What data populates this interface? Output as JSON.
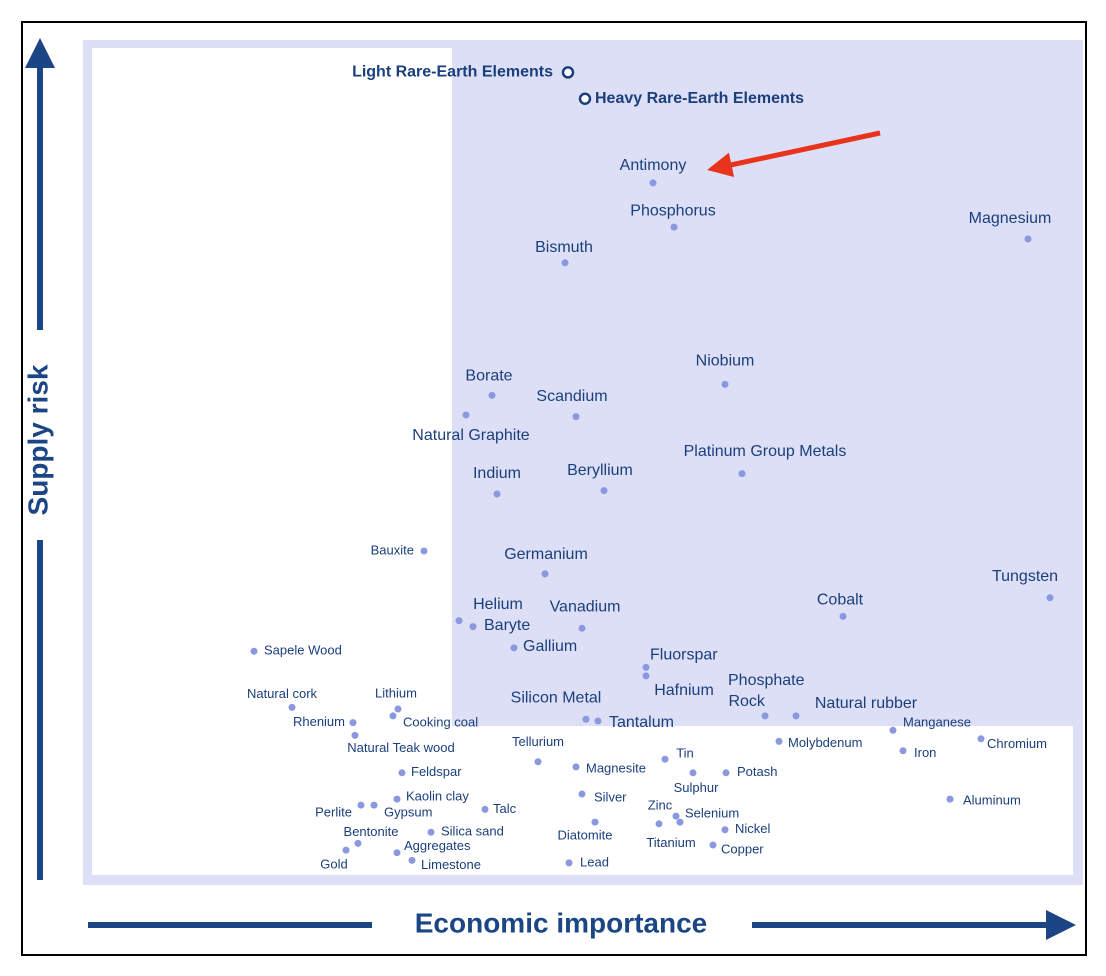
{
  "chart_data": {
    "type": "scatter",
    "x_label": "Economic importance",
    "y_label": "Supply risk",
    "xlim": [
      0,
      100
    ],
    "ylim": [
      0,
      100
    ],
    "shaded_region": {
      "xmin": 37.2,
      "ymin": 18.7
    },
    "hollow_points": [
      {
        "label": "Light Rare-Earth Elements",
        "x": 48.8,
        "y": 95.6
      },
      {
        "label": "Heavy Rare-Earth Elements",
        "x": 50.5,
        "y": 92.5
      }
    ],
    "points": [
      {
        "label": "Antimony",
        "x": 57.3,
        "y": 82.6
      },
      {
        "label": "Phosphorus",
        "x": 59.4,
        "y": 77.4
      },
      {
        "label": "Magnesium",
        "x": 94.8,
        "y": 76.0
      },
      {
        "label": "Bismuth",
        "x": 48.5,
        "y": 73.2
      },
      {
        "label": "Niobium",
        "x": 64.5,
        "y": 58.9
      },
      {
        "label": "Borate",
        "x": 41.2,
        "y": 57.6
      },
      {
        "label": "Scandium",
        "x": 49.6,
        "y": 55.1
      },
      {
        "label": "Natural Graphite",
        "x": 38.6,
        "y": 55.3
      },
      {
        "label": "Platinum Group Metals",
        "x": 66.2,
        "y": 48.4
      },
      {
        "label": "Indium",
        "x": 41.7,
        "y": 46.0
      },
      {
        "label": "Beryllium",
        "x": 52.4,
        "y": 46.4
      },
      {
        "label": "Bauxite",
        "x": 34.4,
        "y": 39.3
      },
      {
        "label": "Germanium",
        "x": 46.5,
        "y": 36.6
      },
      {
        "label": "Tungsten",
        "x": 97.0,
        "y": 33.8
      },
      {
        "label": "Cobalt",
        "x": 76.3,
        "y": 31.6
      },
      {
        "label": "Helium",
        "x": 37.9,
        "y": 31.1
      },
      {
        "label": "Baryte",
        "x": 39.3,
        "y": 30.4
      },
      {
        "label": "Vanadium",
        "x": 50.2,
        "y": 30.2
      },
      {
        "label": "Gallium",
        "x": 43.4,
        "y": 27.9
      },
      {
        "label": "Sapele Wood",
        "x": 17.4,
        "y": 27.5
      },
      {
        "label": "Fluorspar",
        "x": 56.6,
        "y": 25.6
      },
      {
        "label": "Hafnium",
        "x": 56.6,
        "y": 24.6
      },
      {
        "label": "Phosphate Rock",
        "x": 68.5,
        "y": 19.9
      },
      {
        "label": "Natural rubber",
        "x": 71.6,
        "y": 19.9
      },
      {
        "label": "Silicon Metal",
        "x": 50.6,
        "y": 19.5
      },
      {
        "label": "Tantalum",
        "x": 51.8,
        "y": 19.3
      },
      {
        "label": "Natural cork",
        "x": 21.2,
        "y": 20.9
      },
      {
        "label": "Lithium",
        "x": 31.8,
        "y": 20.7
      },
      {
        "label": "Rhenium",
        "x": 27.3,
        "y": 19.1
      },
      {
        "label": "Cooking coal",
        "x": 31.3,
        "y": 19.9
      },
      {
        "label": "Natural Teak wood",
        "x": 27.5,
        "y": 17.6
      },
      {
        "label": "Manganese",
        "x": 81.3,
        "y": 18.2
      },
      {
        "label": "Chromium",
        "x": 90.1,
        "y": 17.2
      },
      {
        "label": "Tellurium",
        "x": 45.8,
        "y": 14.5
      },
      {
        "label": "Molybdenum",
        "x": 69.9,
        "y": 16.9
      },
      {
        "label": "Tin",
        "x": 58.5,
        "y": 14.8
      },
      {
        "label": "Iron",
        "x": 82.3,
        "y": 15.8
      },
      {
        "label": "Feldspar",
        "x": 32.2,
        "y": 13.2
      },
      {
        "label": "Magnesite",
        "x": 49.6,
        "y": 13.9
      },
      {
        "label": "Potash",
        "x": 64.6,
        "y": 13.2
      },
      {
        "label": "Sulphur",
        "x": 61.3,
        "y": 13.2
      },
      {
        "label": "Silver",
        "x": 50.2,
        "y": 10.7
      },
      {
        "label": "Aluminum",
        "x": 87.0,
        "y": 10.1
      },
      {
        "label": "Kaolin clay",
        "x": 31.7,
        "y": 10.1
      },
      {
        "label": "Perlite",
        "x": 28.1,
        "y": 9.4
      },
      {
        "label": "Gypsum",
        "x": 29.4,
        "y": 9.4
      },
      {
        "label": "Talc",
        "x": 40.5,
        "y": 8.9
      },
      {
        "label": "Zinc",
        "x": 59.6,
        "y": 8.1
      },
      {
        "label": "Selenium",
        "x": 60.0,
        "y": 7.4
      },
      {
        "label": "Diatomite",
        "x": 51.5,
        "y": 7.4
      },
      {
        "label": "Titanium",
        "x": 57.9,
        "y": 7.2
      },
      {
        "label": "Nickel",
        "x": 64.5,
        "y": 6.5
      },
      {
        "label": "Bentonite",
        "x": 27.8,
        "y": 4.9
      },
      {
        "label": "Silica sand",
        "x": 35.1,
        "y": 6.2
      },
      {
        "label": "Aggregates",
        "x": 31.7,
        "y": 3.8
      },
      {
        "label": "Gold",
        "x": 26.6,
        "y": 4.1
      },
      {
        "label": "Copper",
        "x": 63.3,
        "y": 4.7
      },
      {
        "label": "Limestone",
        "x": 33.2,
        "y": 2.9
      },
      {
        "label": "Lead",
        "x": 48.9,
        "y": 2.6
      }
    ]
  }
}
